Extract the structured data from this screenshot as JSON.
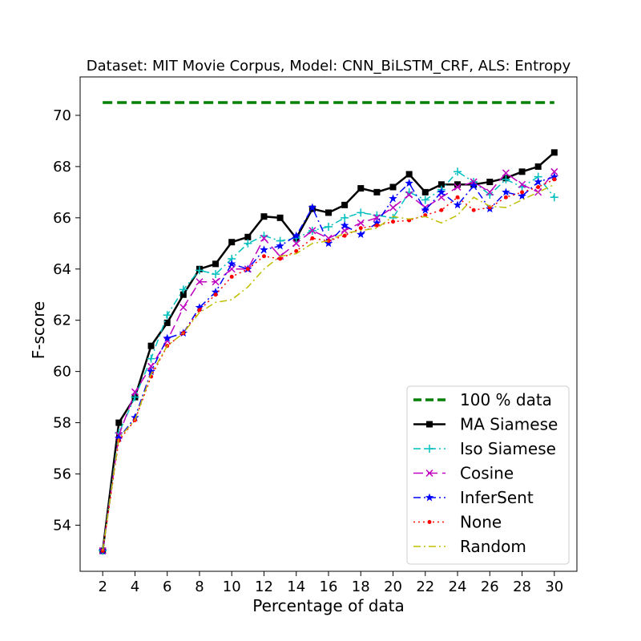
{
  "chart_data": {
    "type": "line",
    "title": "Dataset: MIT Movie Corpus, Model: CNN_BiLSTM_CRF, ALS: Entropy",
    "xlabel": "Percentage of data",
    "ylabel": "F-score",
    "xlim": [
      0.6,
      31.4
    ],
    "ylim": [
      52.2,
      71.5
    ],
    "xticks": [
      2,
      4,
      6,
      8,
      10,
      12,
      14,
      16,
      18,
      20,
      22,
      24,
      26,
      28,
      30
    ],
    "yticks": [
      54,
      56,
      58,
      60,
      62,
      64,
      66,
      68,
      70
    ],
    "grid": false,
    "legend_position": "bottom-right",
    "x": [
      2,
      3,
      4,
      5,
      6,
      7,
      8,
      9,
      10,
      11,
      12,
      13,
      14,
      15,
      16,
      17,
      18,
      19,
      20,
      21,
      22,
      23,
      24,
      25,
      26,
      27,
      28,
      29,
      30
    ],
    "series": [
      {
        "name": "100 % data",
        "color": "#008000",
        "dash": "dashed",
        "marker": "none",
        "width": 3.5,
        "values": [
          70.5,
          70.5,
          70.5,
          70.5,
          70.5,
          70.5,
          70.5,
          70.5,
          70.5,
          70.5,
          70.5,
          70.5,
          70.5,
          70.5,
          70.5,
          70.5,
          70.5,
          70.5,
          70.5,
          70.5,
          70.5,
          70.5,
          70.5,
          70.5,
          70.5,
          70.5,
          70.5,
          70.5,
          70.5
        ]
      },
      {
        "name": "MA Siamese",
        "color": "#000000",
        "dash": "solid",
        "marker": "square",
        "width": 2.5,
        "values": [
          53.0,
          58.0,
          59.0,
          61.0,
          61.9,
          63.0,
          64.0,
          64.2,
          65.05,
          65.25,
          66.05,
          66.0,
          65.2,
          66.35,
          66.2,
          66.5,
          67.15,
          67.0,
          67.2,
          67.7,
          67.0,
          67.3,
          67.3,
          67.3,
          67.4,
          67.55,
          67.8,
          68.0,
          68.55
        ]
      },
      {
        "name": "Iso Siamese",
        "color": "#00bfbf",
        "dash": "dashdot",
        "marker": "plus",
        "width": 1.5,
        "values": [
          53.0,
          57.6,
          59.0,
          60.5,
          62.2,
          63.2,
          63.95,
          63.8,
          64.4,
          65.0,
          65.3,
          65.1,
          65.2,
          65.5,
          65.65,
          66.0,
          66.2,
          66.1,
          66.0,
          67.0,
          66.7,
          67.1,
          67.8,
          67.4,
          66.9,
          67.5,
          67.2,
          67.6,
          66.8
        ]
      },
      {
        "name": "Cosine",
        "color": "#bf00bf",
        "dash": "dashed",
        "marker": "x",
        "width": 1.5,
        "values": [
          53.0,
          57.5,
          59.2,
          60.2,
          61.2,
          62.5,
          63.5,
          63.5,
          64.0,
          64.0,
          65.2,
          64.5,
          65.0,
          65.5,
          65.2,
          65.5,
          65.8,
          66.0,
          66.4,
          66.9,
          66.4,
          66.8,
          67.2,
          67.4,
          67.0,
          67.75,
          67.3,
          67.0,
          67.8
        ]
      },
      {
        "name": "InferSent",
        "color": "#0000ff",
        "dash": "dashdot",
        "marker": "star",
        "width": 1.5,
        "values": [
          53.0,
          57.4,
          58.2,
          60.0,
          61.3,
          61.5,
          62.5,
          63.1,
          64.2,
          64.0,
          64.75,
          64.9,
          65.3,
          66.4,
          65.0,
          65.7,
          65.35,
          65.8,
          66.75,
          67.35,
          66.3,
          67.0,
          66.5,
          67.25,
          66.35,
          67.0,
          66.85,
          67.4,
          67.6
        ]
      },
      {
        "name": "None",
        "color": "#ff0000",
        "dash": "dotted",
        "marker": "dot",
        "width": 1.5,
        "values": [
          53.0,
          57.3,
          58.1,
          59.8,
          61.0,
          61.5,
          62.4,
          63.0,
          63.7,
          64.0,
          64.5,
          64.4,
          64.7,
          65.2,
          65.1,
          65.3,
          65.6,
          65.7,
          65.85,
          65.9,
          66.1,
          66.3,
          66.8,
          66.3,
          66.4,
          66.8,
          67.0,
          67.2,
          67.5
        ]
      },
      {
        "name": "Random",
        "color": "#bfbf00",
        "dash": "dashdot",
        "marker": "none",
        "width": 1.5,
        "values": [
          53.0,
          57.4,
          58.1,
          59.9,
          61.0,
          61.5,
          62.3,
          62.7,
          62.8,
          63.3,
          64.0,
          64.5,
          64.6,
          65.0,
          65.1,
          65.4,
          65.5,
          65.6,
          66.05,
          65.95,
          66.05,
          65.8,
          66.1,
          66.8,
          66.45,
          66.4,
          66.7,
          67.0,
          67.3
        ]
      }
    ]
  }
}
